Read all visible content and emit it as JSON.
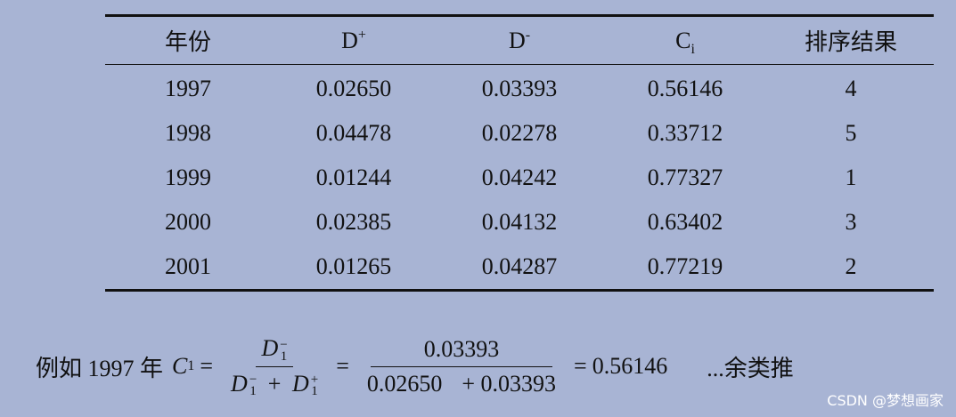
{
  "table": {
    "headers": {
      "year": "年份",
      "dplus_base": "D",
      "dplus_sup": "+",
      "dminus_base": "D",
      "dminus_sup": "-",
      "ci_base": "C",
      "ci_sub": "i",
      "rank": "排序结果"
    },
    "rows": [
      {
        "year": "1997",
        "dplus": "0.02650",
        "dminus": "0.03393",
        "ci": "0.56146",
        "rank": "4"
      },
      {
        "year": "1998",
        "dplus": "0.04478",
        "dminus": "0.02278",
        "ci": "0.33712",
        "rank": "5"
      },
      {
        "year": "1999",
        "dplus": "0.01244",
        "dminus": "0.04242",
        "ci": "0.77327",
        "rank": "1"
      },
      {
        "year": "2000",
        "dplus": "0.02385",
        "dminus": "0.04132",
        "ci": "0.63402",
        "rank": "3"
      },
      {
        "year": "2001",
        "dplus": "0.01265",
        "dminus": "0.04287",
        "ci": "0.77219",
        "rank": "2"
      }
    ]
  },
  "formula": {
    "prefix": "例如 1997 年",
    "c_symbol": "C",
    "c_sub": "1",
    "equals": "=",
    "num1_base": "D",
    "num1_sup": "−",
    "num1_sub": "1",
    "den1_a_base": "D",
    "den1_a_sup": "−",
    "den1_a_sub": "1",
    "plus": "+",
    "den1_b_base": "D",
    "den1_b_sup": "+",
    "den1_b_sub": "1",
    "num2": "0.03393",
    "den2_a": "0.02650",
    "den2_b": "+ 0.03393",
    "result": "0.56146",
    "suffix": "...余类推"
  },
  "watermark": "CSDN @梦想画家"
}
